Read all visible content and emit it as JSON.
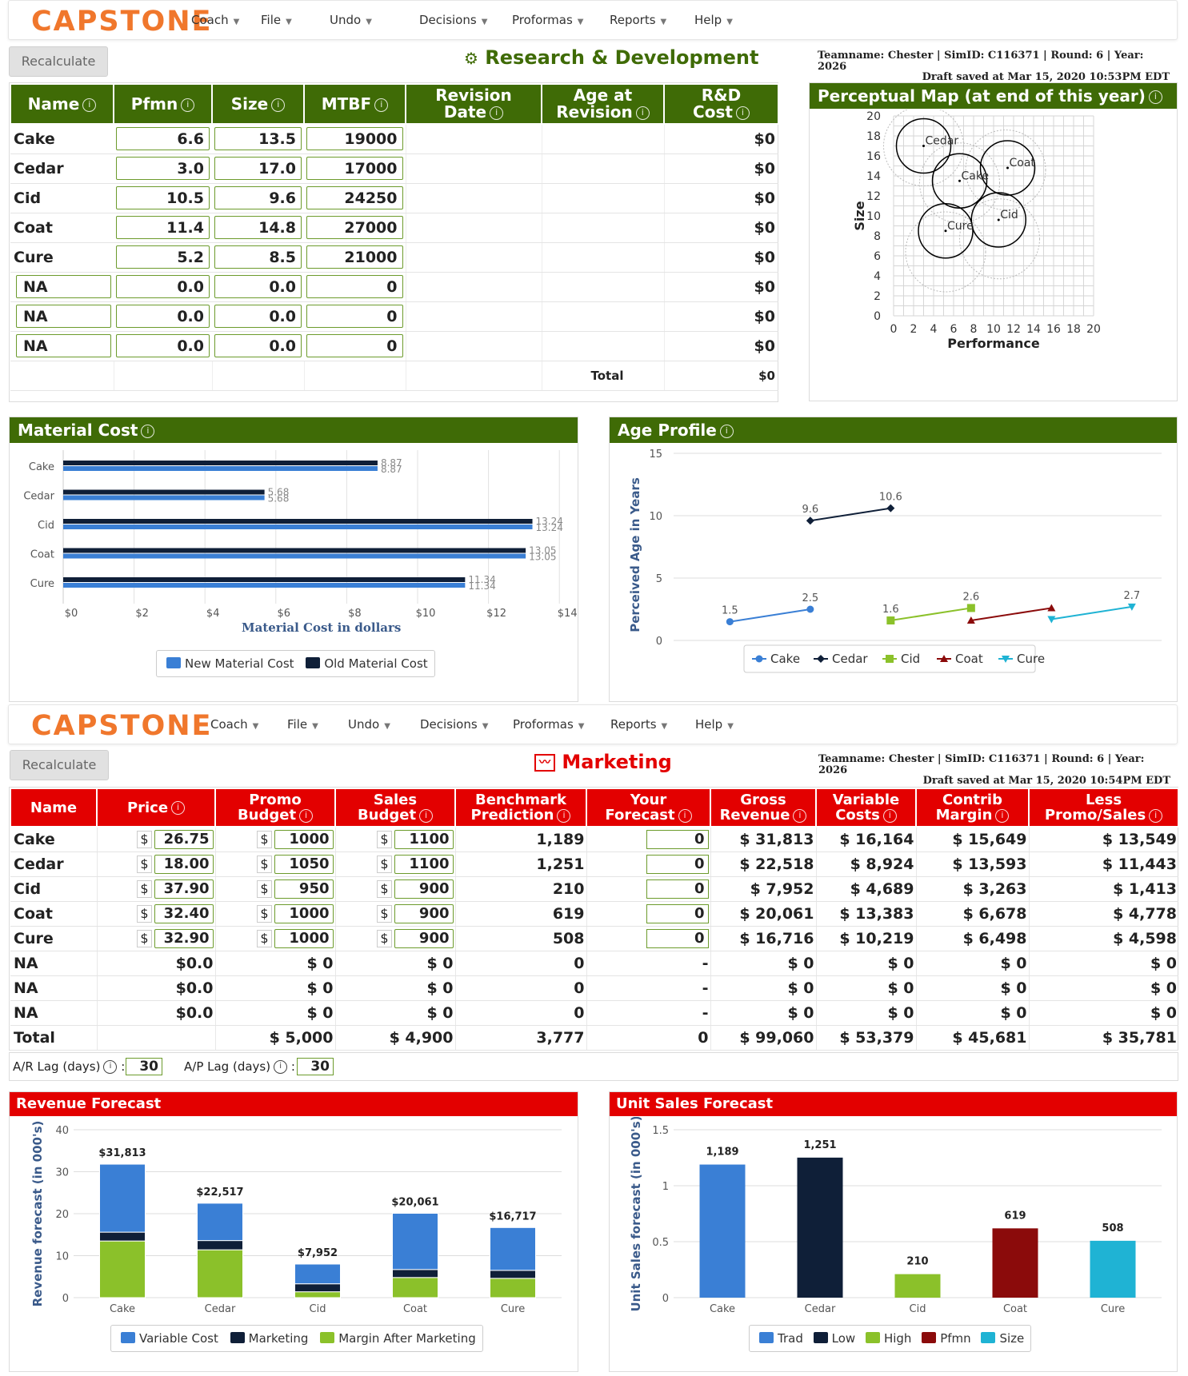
{
  "brand": {
    "logo": "CAPSTONE",
    "accent": "#f0772c"
  },
  "menu": {
    "coach": "Coach",
    "file": "File",
    "undo": "Undo",
    "decisions": "Decisions",
    "proformas": "Proformas",
    "reports": "Reports",
    "help": "Help"
  },
  "recalc": "Recalculate",
  "rd": {
    "title": "Research & Development",
    "team_line": "Teamname: Chester | SimID: C116371 | Round: 6 | Year:",
    "year": "2026",
    "draft": "Draft saved at Mar 15, 2020 10:53PM EDT",
    "headers": {
      "name": "Name",
      "pfmn": "Pfmn",
      "size": "Size",
      "mtbf": "MTBF",
      "rev_l1": "Revision",
      "rev_l2": "Date",
      "age_l1": "Age at",
      "age_l2": "Revision",
      "cost_l1": "R&D",
      "cost_l2": "Cost"
    },
    "rows": [
      {
        "name": "Cake",
        "pfmn": "6.6",
        "size": "13.5",
        "mtbf": "19000",
        "cost": "$0"
      },
      {
        "name": "Cedar",
        "pfmn": "3.0",
        "size": "17.0",
        "mtbf": "17000",
        "cost": "$0"
      },
      {
        "name": "Cid",
        "pfmn": "10.5",
        "size": "9.6",
        "mtbf": "24250",
        "cost": "$0"
      },
      {
        "name": "Coat",
        "pfmn": "11.4",
        "size": "14.8",
        "mtbf": "27000",
        "cost": "$0"
      },
      {
        "name": "Cure",
        "pfmn": "5.2",
        "size": "8.5",
        "mtbf": "21000",
        "cost": "$0"
      },
      {
        "name": "NA",
        "pfmn": "0.0",
        "size": "0.0",
        "mtbf": "0",
        "cost": "$0"
      },
      {
        "name": "NA",
        "pfmn": "0.0",
        "size": "0.0",
        "mtbf": "0",
        "cost": "$0"
      },
      {
        "name": "NA",
        "pfmn": "0.0",
        "size": "0.0",
        "mtbf": "0",
        "cost": "$0"
      }
    ],
    "total_label": "Total",
    "total_cost": "$0"
  },
  "perceptual": {
    "title": "Perceptual Map (at end of this year)",
    "xlabel": "Performance",
    "ylabel": "Size",
    "ticks": [
      "0",
      "2",
      "4",
      "6",
      "8",
      "10",
      "12",
      "14",
      "16",
      "18",
      "20"
    ],
    "points": [
      {
        "name": "Cedar",
        "x": 3.0,
        "y": 17.0
      },
      {
        "name": "Cake",
        "x": 6.6,
        "y": 13.5
      },
      {
        "name": "Coat",
        "x": 11.4,
        "y": 14.8
      },
      {
        "name": "Cid",
        "x": 10.5,
        "y": 9.6
      },
      {
        "name": "Cure",
        "x": 5.2,
        "y": 8.5
      }
    ],
    "rings": [
      {
        "x": 3.0,
        "y": 17.0
      },
      {
        "x": 6.6,
        "y": 13.3
      },
      {
        "x": 11.2,
        "y": 14.6
      },
      {
        "x": 10.6,
        "y": 7.7
      },
      {
        "x": 5.2,
        "y": 6.4
      }
    ]
  },
  "material": {
    "title": "Material Cost",
    "xlabel": "Material Cost in dollars",
    "legend_new": "New Material Cost",
    "legend_old": "Old Material Cost",
    "color_new": "#3a7fd5",
    "color_old": "#0f1f38",
    "chart_data": {
      "type": "bar",
      "categories": [
        "Cake",
        "Cedar",
        "Cid",
        "Coat",
        "Cure"
      ],
      "series": [
        {
          "name": "Old Material Cost",
          "values": [
            8.87,
            5.68,
            13.24,
            13.05,
            11.34
          ]
        },
        {
          "name": "New Material Cost",
          "values": [
            8.87,
            5.68,
            13.24,
            13.05,
            11.34
          ]
        }
      ],
      "ticks": [
        "$0",
        "$2",
        "$4",
        "$6",
        "$8",
        "$10",
        "$12",
        "$14"
      ],
      "xlim": [
        0,
        14
      ],
      "labels": [
        "8.87",
        "5.68",
        "13.24",
        "13.05",
        "11.34"
      ]
    }
  },
  "age": {
    "title": "Age Profile",
    "ylabel": "Perceived Age in Years",
    "chart_data": {
      "type": "line",
      "ylim": [
        0,
        15
      ],
      "yticks": [
        "0",
        "5",
        "10",
        "15"
      ],
      "series": [
        {
          "name": "Cake",
          "color": "#3a7fd5",
          "marker": "circle",
          "points": [
            [
              1,
              1.5
            ],
            [
              2,
              2.5
            ]
          ],
          "labels": [
            "1.5",
            "2.5"
          ]
        },
        {
          "name": "Cedar",
          "color": "#0f1f38",
          "marker": "diamond",
          "points": [
            [
              2,
              9.6
            ],
            [
              3,
              10.6
            ]
          ],
          "labels": [
            "9.6",
            "10.6"
          ]
        },
        {
          "name": "Cid",
          "color": "#8bc12a",
          "marker": "square",
          "points": [
            [
              3,
              1.6
            ],
            [
              4,
              2.6
            ]
          ],
          "labels": [
            "1.6",
            "2.6"
          ]
        },
        {
          "name": "Coat",
          "color": "#8b0b0b",
          "marker": "triangle",
          "points": [
            [
              4,
              1.6
            ],
            [
              5,
              2.6
            ]
          ],
          "labels": [
            "",
            ""
          ]
        },
        {
          "name": "Cure",
          "color": "#1fb3d4",
          "marker": "tridown",
          "points": [
            [
              5,
              1.7
            ],
            [
              6,
              2.7
            ]
          ],
          "labels": [
            "",
            "2.7"
          ]
        }
      ]
    }
  },
  "mk": {
    "title": "Marketing",
    "team_line": "Teamname: Chester | SimID: C116371 | Round: 6 | Year:",
    "year": "2026",
    "draft": "Draft saved at Mar 15, 2020 10:54PM EDT",
    "headers": {
      "name": "Name",
      "price": "Price",
      "promo_l1": "Promo",
      "promo_l2": "Budget",
      "sales_l1": "Sales",
      "sales_l2": "Budget",
      "bench_l1": "Benchmark",
      "bench_l2": "Prediction",
      "fc_l1": "Your",
      "fc_l2": "Forecast",
      "gross_l1": "Gross",
      "gross_l2": "Revenue",
      "var_l1": "Variable",
      "var_l2": "Costs",
      "contrib_l1": "Contrib",
      "contrib_l2": "Margin",
      "less_l1": "Less",
      "less_l2": "Promo/Sales"
    },
    "dollar": "$",
    "rows": [
      {
        "name": "Cake",
        "price": "26.75",
        "promo": "1000",
        "sales": "1100",
        "bench": "1,189",
        "forecast": "0",
        "gross": "$ 31,813",
        "var": "$ 16,164",
        "contrib": "$ 15,649",
        "less": "$ 13,549"
      },
      {
        "name": "Cedar",
        "price": "18.00",
        "promo": "1050",
        "sales": "1100",
        "bench": "1,251",
        "forecast": "0",
        "gross": "$ 22,518",
        "var": "$ 8,924",
        "contrib": "$ 13,593",
        "less": "$ 11,443"
      },
      {
        "name": "Cid",
        "price": "37.90",
        "promo": "950",
        "sales": "900",
        "bench": "210",
        "forecast": "0",
        "gross": "$ 7,952",
        "var": "$ 4,689",
        "contrib": "$ 3,263",
        "less": "$ 1,413"
      },
      {
        "name": "Coat",
        "price": "32.40",
        "promo": "1000",
        "sales": "900",
        "bench": "619",
        "forecast": "0",
        "gross": "$ 20,061",
        "var": "$ 13,383",
        "contrib": "$ 6,678",
        "less": "$ 4,778"
      },
      {
        "name": "Cure",
        "price": "32.90",
        "promo": "1000",
        "sales": "900",
        "bench": "508",
        "forecast": "0",
        "gross": "$ 16,716",
        "var": "$ 10,219",
        "contrib": "$ 6,498",
        "less": "$ 4,598"
      }
    ],
    "na_rows": [
      {
        "name": "NA",
        "price": "$0.0",
        "promo": "$ 0",
        "sales": "$ 0",
        "bench": "0",
        "forecast": "-",
        "gross": "$ 0",
        "var": "$ 0",
        "contrib": "$ 0",
        "less": "$ 0"
      },
      {
        "name": "NA",
        "price": "$0.0",
        "promo": "$ 0",
        "sales": "$ 0",
        "bench": "0",
        "forecast": "-",
        "gross": "$ 0",
        "var": "$ 0",
        "contrib": "$ 0",
        "less": "$ 0"
      },
      {
        "name": "NA",
        "price": "$0.0",
        "promo": "$ 0",
        "sales": "$ 0",
        "bench": "0",
        "forecast": "-",
        "gross": "$ 0",
        "var": "$ 0",
        "contrib": "$ 0",
        "less": "$ 0"
      }
    ],
    "total": {
      "name": "Total",
      "price": "",
      "promo": "$ 5,000",
      "sales": "$ 4,900",
      "bench": "3,777",
      "forecast": "0",
      "gross": "$ 99,060",
      "var": "$ 53,379",
      "contrib": "$ 45,681",
      "less": "$ 35,781"
    },
    "ar_label": "A/R Lag (days)",
    "ar_value": "30",
    "ap_label": "A/P Lag (days)",
    "ap_value": "30",
    "colon": ":"
  },
  "revenue": {
    "title": "Revenue Forecast",
    "ylabel": "Revenue forecast (in 000's)",
    "legend": [
      "Variable Cost",
      "Marketing",
      "Margin After Marketing"
    ],
    "chart_data": {
      "type": "bar",
      "stacked": true,
      "categories": [
        "Cake",
        "Cedar",
        "Cid",
        "Coat",
        "Cure"
      ],
      "ylim": [
        0,
        40
      ],
      "yticks": [
        "0",
        "10",
        "20",
        "30",
        "40"
      ],
      "series": [
        {
          "name": "Margin After Marketing",
          "color": "#8bc12a",
          "values": [
            13.5,
            11.4,
            1.4,
            4.8,
            4.6
          ]
        },
        {
          "name": "Marketing",
          "color": "#0f1f38",
          "values": [
            2.1,
            2.2,
            1.9,
            1.9,
            1.9
          ]
        },
        {
          "name": "Variable Cost",
          "color": "#3a7fd5",
          "values": [
            16.2,
            8.9,
            4.7,
            13.4,
            10.2
          ]
        }
      ],
      "labels": [
        "$31,813",
        "$22,517",
        "$7,952",
        "$20,061",
        "$16,717"
      ]
    }
  },
  "unitsales": {
    "title": "Unit Sales Forecast",
    "ylabel": "Unit Sales forecast (in 000's)",
    "legend": [
      "Trad",
      "Low",
      "High",
      "Pfmn",
      "Size"
    ],
    "chart_data": {
      "type": "bar",
      "categories": [
        "Cake",
        "Cedar",
        "Cid",
        "Coat",
        "Cure"
      ],
      "ylim": [
        0,
        1.5
      ],
      "yticks": [
        "0",
        "0.5",
        "1",
        "1.5"
      ],
      "values": [
        1.189,
        1.251,
        0.21,
        0.619,
        0.508
      ],
      "colors": [
        "#3a7fd5",
        "#0f1f38",
        "#8bc12a",
        "#8b0b0b",
        "#1fb3d4"
      ],
      "labels": [
        "1,189",
        "1,251",
        "210",
        "619",
        "508"
      ]
    }
  }
}
